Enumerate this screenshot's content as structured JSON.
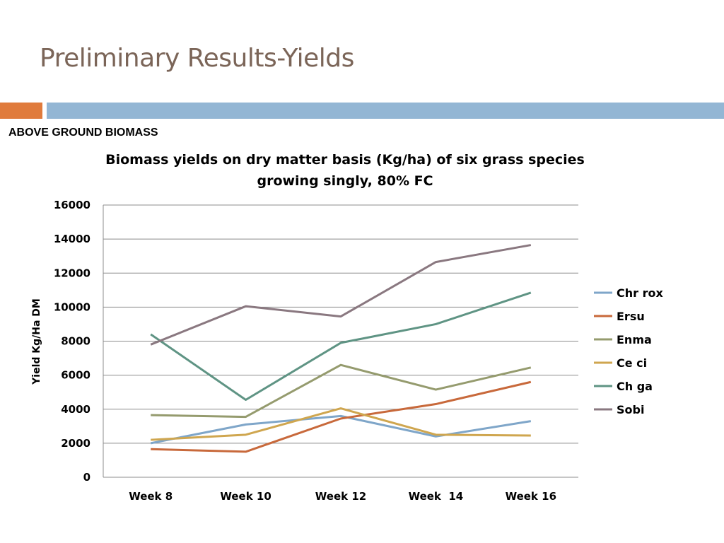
{
  "slide": {
    "title": "Preliminary Results-Yields",
    "section_heading": "ABOVE GROUND BIOMASS",
    "accent_colors": {
      "orange": "#e07b3c",
      "blue": "#93b6d4"
    }
  },
  "chart_data": {
    "type": "line",
    "title_line1": "Biomass yields on dry matter basis (Kg/ha) of six grass species",
    "title_line2": "growing singly, 80% FC",
    "xlabel": "",
    "ylabel": "Yield Kg/Ha DM",
    "categories": [
      "Week 8",
      "Week 10",
      "Week 12",
      "Week  14",
      "Week 16"
    ],
    "ylim": [
      0,
      16000
    ],
    "yticks": [
      0,
      2000,
      4000,
      6000,
      8000,
      10000,
      12000,
      14000,
      16000
    ],
    "grid": true,
    "legend_position": "right",
    "series": [
      {
        "name": "Chr rox",
        "color": "#7fa6c9",
        "values": [
          2000,
          3100,
          3600,
          2400,
          3300
        ]
      },
      {
        "name": "Ersu",
        "color": "#c8693b",
        "values": [
          1650,
          1500,
          3450,
          4300,
          5600
        ]
      },
      {
        "name": "Enma",
        "color": "#959b6e",
        "values": [
          3650,
          3550,
          6600,
          5150,
          6450
        ]
      },
      {
        "name": "Ce ci",
        "color": "#cfa64f",
        "values": [
          2200,
          2500,
          4050,
          2500,
          2450
        ]
      },
      {
        "name": "Ch ga",
        "color": "#5f9484",
        "values": [
          8400,
          4550,
          7900,
          9000,
          10850
        ]
      },
      {
        "name": "Sobi",
        "color": "#8a7880",
        "values": [
          7800,
          10050,
          9450,
          12650,
          13650
        ]
      }
    ]
  }
}
